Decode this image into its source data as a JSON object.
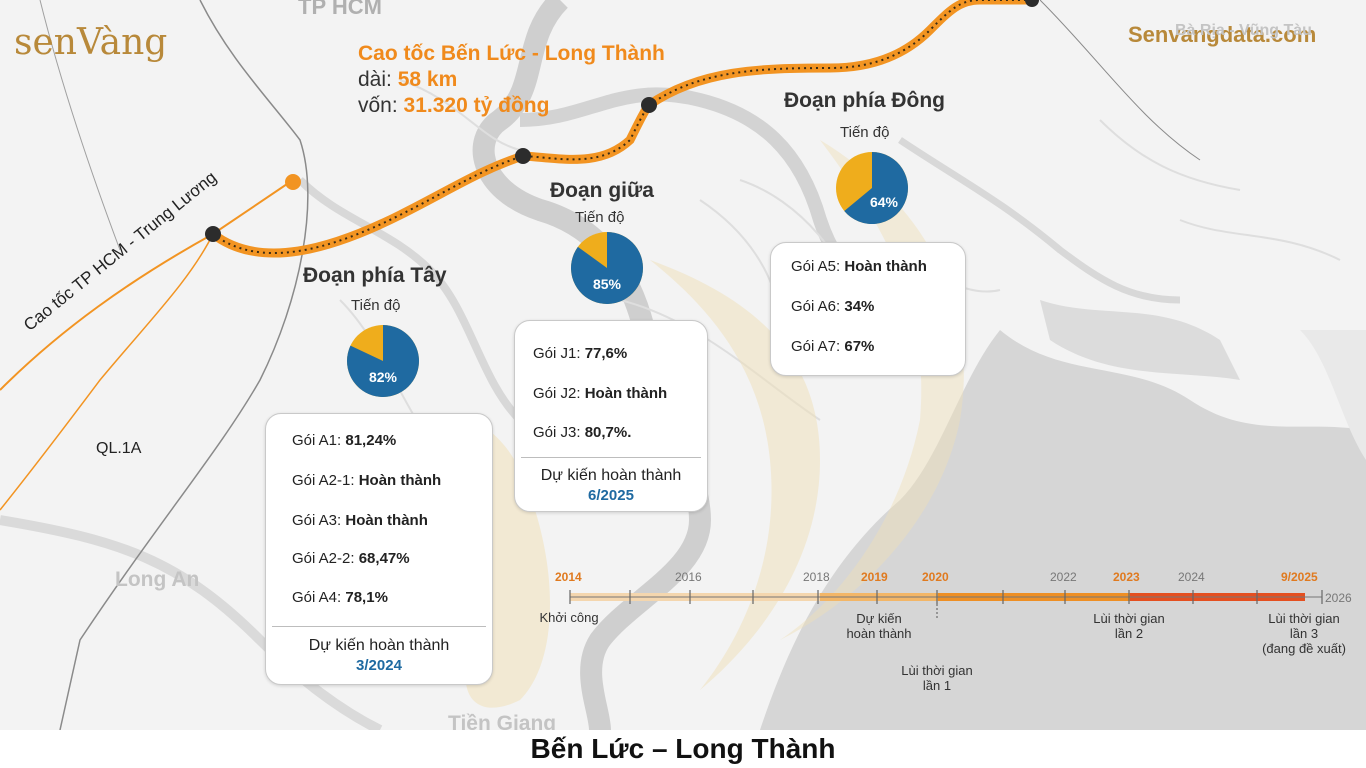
{
  "brand": {
    "logo_text": "senVàng",
    "website": "Senvangdata.com"
  },
  "header": {
    "title": "Cao tốc Bến Lức - Long Thành",
    "length_label": "dài:",
    "length_value": "58 km",
    "capital_label": "vốn:",
    "capital_value": "31.320 tỷ đồng"
  },
  "map_labels": {
    "city": "TP HCM",
    "expressway_hcm": "Cao tốc TP HCM - Trung Lương",
    "ql1a": "QL.1A",
    "long_an": "Long An",
    "tien_giang": "Tiền Giang",
    "ba_ria": "Bà Rịa - Vũng Tàu"
  },
  "segments": {
    "west": {
      "title": "Đoạn phía Tây",
      "progress_label": "Tiến độ",
      "progress": 82,
      "progress_text": "82%",
      "packages": [
        {
          "name": "Gói A1:",
          "status": "81,24%"
        },
        {
          "name": "Gói A2-1:",
          "status": "Hoàn thành"
        },
        {
          "name": "Gói A3:",
          "status": "Hoàn thành"
        },
        {
          "name": "Gói A2-2:",
          "status": "68,47%"
        },
        {
          "name": "Gói A4:",
          "status": "78,1%"
        }
      ],
      "expected_label": "Dự kiến hoàn thành",
      "expected_date": "3/2024"
    },
    "middle": {
      "title": "Đoạn giữa",
      "progress_label": "Tiến độ",
      "progress": 85,
      "progress_text": "85%",
      "packages": [
        {
          "name": "Gói J1:",
          "status": "77,6%"
        },
        {
          "name": "Gói J2:",
          "status": "Hoàn thành"
        },
        {
          "name": "Gói J3:",
          "status": "80,7%."
        }
      ],
      "expected_label": "Dự kiến hoàn thành",
      "expected_date": "6/2025"
    },
    "east": {
      "title": "Đoạn phía Đông",
      "progress_label": "Tiến độ",
      "progress": 64,
      "progress_text": "64%",
      "packages": [
        {
          "name": "Gói A5:",
          "status": "Hoàn thành"
        },
        {
          "name": "Gói A6:",
          "status": "34%"
        },
        {
          "name": "Gói A7:",
          "status": "67%"
        }
      ]
    }
  },
  "timeline": {
    "years": [
      "2014",
      "2016",
      "2018",
      "2019",
      "2020",
      "2022",
      "2023",
      "2024",
      "9/2025",
      "2026"
    ],
    "notes": {
      "start": "Khởi công",
      "planned": [
        "Dự kiến",
        "hoàn thành"
      ],
      "delay1": [
        "Lùi thời gian",
        "lần 1"
      ],
      "delay2": [
        "Lùi thời gian",
        "lần 2"
      ],
      "delay3": [
        "Lùi thời gian",
        "lần 3",
        "(đang đề xuất)"
      ]
    }
  },
  "colors": {
    "orange": "#f29422",
    "blue": "#1f6aa1",
    "pie_yellow": "#efad1c",
    "route_gold": "#f5a23a",
    "title_orange": "#f08a1c"
  },
  "footer": {
    "caption": "Bến Lức – Long Thành"
  }
}
